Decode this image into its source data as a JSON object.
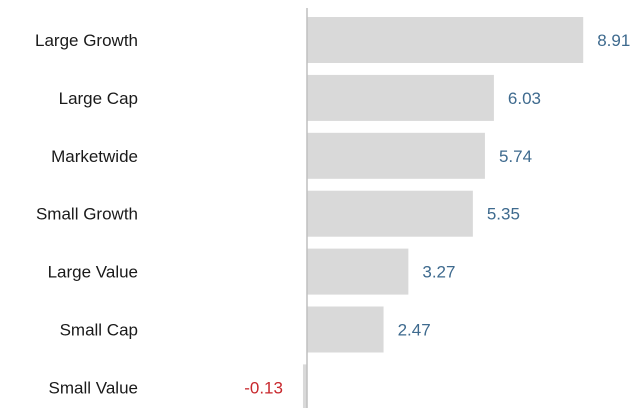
{
  "colors": {
    "bar": "#d9d9d9",
    "axis": "#bfbfbf",
    "positive_label": "#3e6a8e",
    "negative_label": "#c8282d",
    "category_label": "#1a1a1a"
  },
  "chart_data": {
    "type": "bar",
    "orientation": "horizontal",
    "title": "",
    "xlabel": "",
    "ylabel": "",
    "grid": false,
    "legend": "none",
    "categories": [
      "Large Growth",
      "Large Cap",
      "Marketwide",
      "Small Growth",
      "Large Value",
      "Small Cap",
      "Small Value"
    ],
    "values": [
      8.91,
      6.03,
      5.74,
      5.35,
      3.27,
      2.47,
      -0.13
    ],
    "value_labels": [
      "8.91",
      "6.03",
      "5.74",
      "5.35",
      "3.27",
      "2.47",
      "-0.13"
    ],
    "xlim": [
      -0.13,
      8.91
    ]
  }
}
